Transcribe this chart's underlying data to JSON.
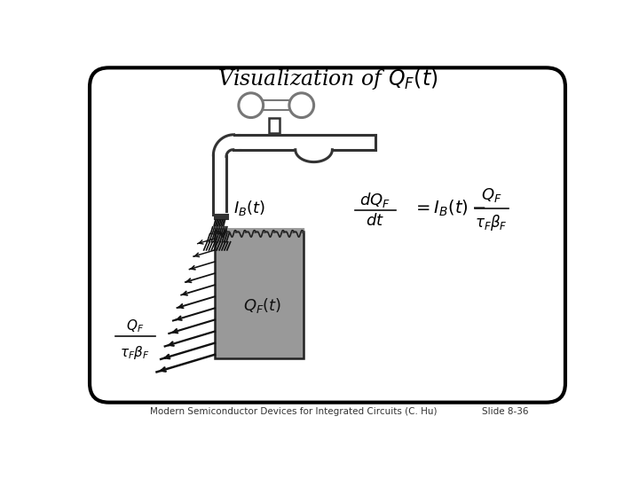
{
  "title": "Visualization of $Q_F(t)$",
  "title_fontsize": 17,
  "footer_text": "Modern Semiconductor Devices for Integrated Circuits (C. Hu)",
  "slide_text": "Slide 8-36",
  "eq_num": "$\\frac{dQ_F}{dt}$",
  "eq_rhs": "$= I_B(t) - \\frac{Q_F}{\\tau_F \\beta_F}$",
  "label_IB": "$I_B(t)$",
  "label_QF": "$Q_F(t)$",
  "label_leak_num": "$Q_F$",
  "label_leak_den": "$\\tau_F\\beta_F$",
  "bg_color": "#ffffff",
  "border_color": "#000000",
  "faucet_color": "#333333",
  "bucket_fill": "#999999",
  "bucket_edge": "#222222"
}
